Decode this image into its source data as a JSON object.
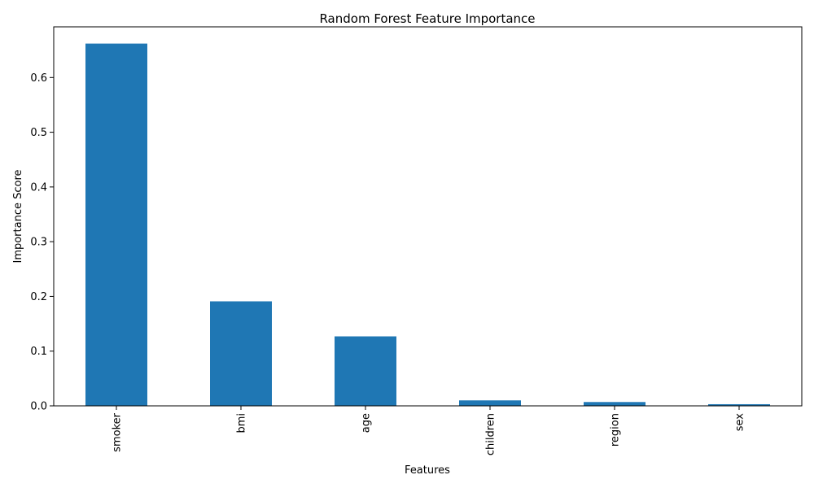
{
  "chart_data": {
    "type": "bar",
    "title": "Random Forest Feature Importance",
    "xlabel": "Features",
    "ylabel": "Importance Score",
    "categories": [
      "smoker",
      "bmi",
      "age",
      "children",
      "region",
      "sex"
    ],
    "values": [
      0.662,
      0.191,
      0.127,
      0.01,
      0.007,
      0.003
    ],
    "ylim": [
      0,
      0.6926
    ],
    "yticks": [
      0.0,
      0.1,
      0.2,
      0.3,
      0.4,
      0.5,
      0.6
    ],
    "ytick_labels": [
      "0.0",
      "0.1",
      "0.2",
      "0.3",
      "0.4",
      "0.5",
      "0.6"
    ],
    "grid": false,
    "legend": "none",
    "bar_color": "#1f77b4"
  }
}
